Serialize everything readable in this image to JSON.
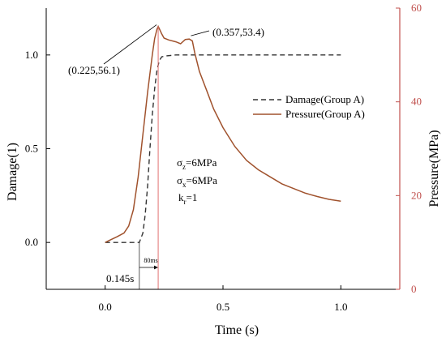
{
  "chart_data": {
    "type": "line",
    "xlabel": "Time (s)",
    "ylabel_left": "Damage(1)",
    "ylabel_right": "Pressure(MPa)",
    "xlim": [
      -0.25,
      1.25
    ],
    "ylim_left": [
      -0.25,
      1.25
    ],
    "ylim_right": [
      0,
      60
    ],
    "x_ticks": [
      0.0,
      0.5,
      1.0
    ],
    "x_tick_labels": [
      "0.0",
      "0.5",
      "1.0"
    ],
    "y_left_ticks": [
      0.0,
      0.5,
      1.0
    ],
    "y_left_tick_labels": [
      "0.0",
      "0.5",
      "1.0"
    ],
    "y_right_ticks": [
      0,
      20,
      40,
      60
    ],
    "y_right_tick_labels": [
      "0",
      "20",
      "40",
      "60"
    ],
    "legend_position": "center-right",
    "colors": {
      "damage": "#333333",
      "pressure": "#a0522d",
      "right_axis": "#c0504d"
    },
    "series": [
      {
        "name": "Damage(Group A)",
        "axis": "left",
        "style": "dashed",
        "x": [
          0.0,
          0.145,
          0.16,
          0.17,
          0.18,
          0.19,
          0.2,
          0.21,
          0.22,
          0.23,
          0.24,
          0.26,
          0.3,
          0.5,
          1.0
        ],
        "y": [
          0.0,
          0.0,
          0.05,
          0.15,
          0.3,
          0.5,
          0.68,
          0.82,
          0.92,
          0.97,
          0.99,
          0.995,
          1.0,
          1.0,
          1.0
        ]
      },
      {
        "name": "Pressure(Group A)",
        "axis": "right",
        "style": "solid",
        "x": [
          0.0,
          0.02,
          0.05,
          0.08,
          0.1,
          0.12,
          0.14,
          0.16,
          0.18,
          0.2,
          0.21,
          0.22,
          0.225,
          0.23,
          0.24,
          0.25,
          0.27,
          0.3,
          0.32,
          0.34,
          0.357,
          0.37,
          0.38,
          0.4,
          0.43,
          0.46,
          0.5,
          0.55,
          0.6,
          0.65,
          0.7,
          0.75,
          0.8,
          0.85,
          0.9,
          0.95,
          1.0
        ],
        "y": [
          10.0,
          10.5,
          11.2,
          12.0,
          13.5,
          17.0,
          24.0,
          33.0,
          42.0,
          50.0,
          53.5,
          55.5,
          56.1,
          55.6,
          54.5,
          53.6,
          53.2,
          52.8,
          52.4,
          53.3,
          53.4,
          53.0,
          50.5,
          46.5,
          42.5,
          38.5,
          34.5,
          30.5,
          27.5,
          25.5,
          24.0,
          22.5,
          21.5,
          20.5,
          19.8,
          19.2,
          18.8
        ]
      }
    ],
    "annotations": {
      "peak1_label": "(0.225,56.1)",
      "peak2_label": "(0.357,53.4)",
      "start_label": "0.145s",
      "gap_label": "80ms",
      "gap_from_x": 0.145,
      "gap_to_x": 0.225,
      "params": {
        "sigma_symbol": "σ",
        "sz_sub": "z",
        "sz_value": "=6MPa",
        "sx_sub": "x",
        "sx_value": "=6MPa",
        "k_symbol": "k",
        "kr_sub": "r",
        "kr_value": "=1"
      }
    }
  }
}
